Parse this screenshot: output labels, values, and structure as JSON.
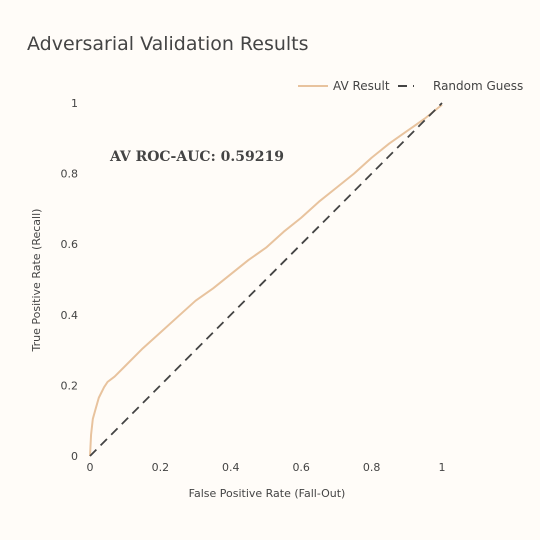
{
  "chart_data": {
    "type": "line",
    "title": "Adversarial Validation Results",
    "xlabel": "False Positive Rate (Fall-Out)",
    "ylabel": "True Positive Rate (Recall)",
    "xlim": [
      0,
      1
    ],
    "ylim": [
      0,
      1
    ],
    "xticks": [
      "0",
      "0.2",
      "0.4",
      "0.6",
      "0.8",
      "1"
    ],
    "yticks": [
      "0",
      "0.2",
      "0.4",
      "0.6",
      "0.8",
      "1"
    ],
    "grid": false,
    "legend_position": "top-right",
    "annotation": "AV ROC-AUC: 0.59219",
    "series": [
      {
        "name": "AV Result",
        "color": "#e8c39e",
        "style": "solid",
        "x": [
          0,
          0.003,
          0.008,
          0.015,
          0.025,
          0.04,
          0.05,
          0.07,
          0.1,
          0.15,
          0.2,
          0.25,
          0.3,
          0.35,
          0.4,
          0.45,
          0.5,
          0.55,
          0.6,
          0.65,
          0.7,
          0.75,
          0.8,
          0.85,
          0.9,
          0.95,
          1.0
        ],
        "y": [
          0,
          0.06,
          0.105,
          0.13,
          0.165,
          0.195,
          0.21,
          0.225,
          0.255,
          0.305,
          0.35,
          0.395,
          0.44,
          0.475,
          0.515,
          0.555,
          0.59,
          0.635,
          0.675,
          0.72,
          0.76,
          0.8,
          0.845,
          0.885,
          0.92,
          0.955,
          0.995
        ]
      },
      {
        "name": "Random Guess",
        "color": "#444444",
        "style": "dashed",
        "x": [
          0,
          1
        ],
        "y": [
          0,
          1
        ]
      }
    ]
  }
}
